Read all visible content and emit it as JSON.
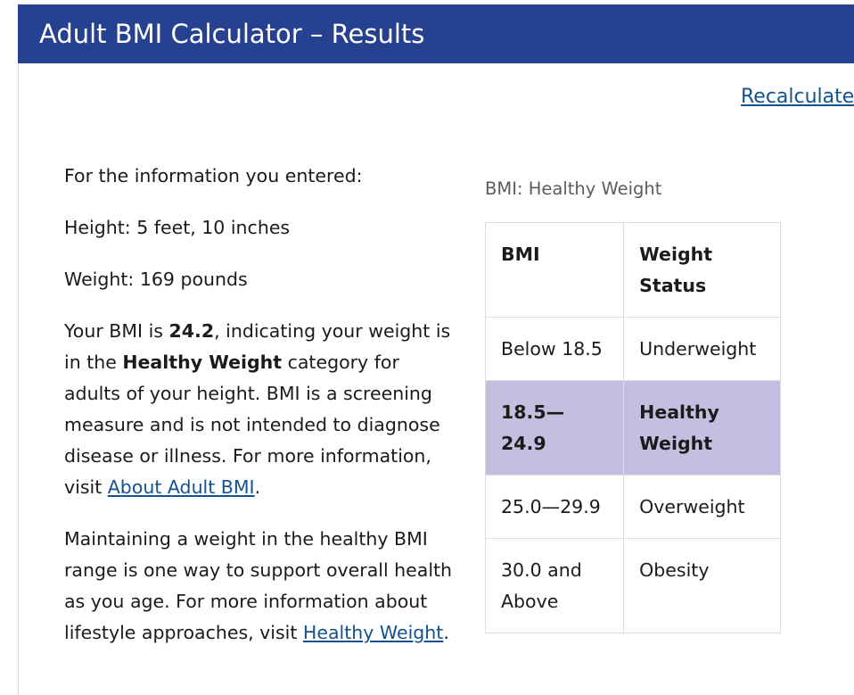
{
  "header": {
    "title": "Adult BMI Calculator – Results"
  },
  "recalculate_link": "Recalculate",
  "info": {
    "intro": "For the information you entered:",
    "height": "Height: 5 feet, 10 inches",
    "weight": "Weight: 169 pounds",
    "bmi_p1_a": "Your BMI is ",
    "bmi_value": "24.2",
    "bmi_p1_b": ", indicating your weight is in the ",
    "category": "Healthy Weight",
    "bmi_p1_c": " category for adults of your height. BMI is a screening measure and is not intended to diagnose disease or illness. For more information, visit ",
    "bmi_link": "About Adult BMI",
    "bmi_p1_end": ".",
    "maintain_text": "Maintaining a weight in the healthy BMI range is one way to support overall health as you age. For more information about lifestyle approaches, visit ",
    "maintain_link": "Healthy Weight",
    "maintain_end": "."
  },
  "table": {
    "caption": "BMI: Healthy Weight",
    "headers": [
      "BMI",
      "Weight Status"
    ],
    "rows": [
      {
        "bmi": "Below 18.5",
        "status": "Underweight"
      },
      {
        "bmi": "18.5—24.9",
        "status": "Healthy Weight"
      },
      {
        "bmi": "25.0—29.9",
        "status": "Overweight"
      },
      {
        "bmi": "30.0 and Above",
        "status": "Obesity"
      }
    ],
    "highlight_color": "#c4bfe1"
  },
  "colors": {
    "header_bg": "#26418f",
    "link": "#14518f"
  }
}
